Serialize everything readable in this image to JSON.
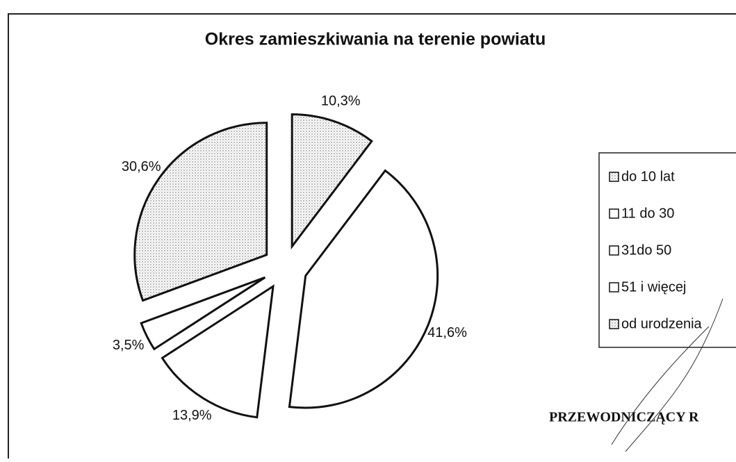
{
  "chart_data": {
    "type": "pie",
    "title": "Okres zamieszkiwania na terenie powiatu",
    "categories": [
      "do 10 lat",
      "11 do 30",
      "31do 50",
      "51 i więcej",
      "od urodzenia"
    ],
    "values": [
      10.3,
      41.6,
      13.9,
      3.5,
      30.6
    ],
    "value_labels": [
      "10,3%",
      "41,6%",
      "13,9%",
      "3,5%",
      "30,6%"
    ],
    "colors": [
      "#d4d4d4",
      "#ffffff",
      "#ffffff",
      "#ffffff",
      "#e2e2e2"
    ],
    "legend": "right",
    "annotations": [
      "PRZEWODNICZĄCY R"
    ]
  }
}
